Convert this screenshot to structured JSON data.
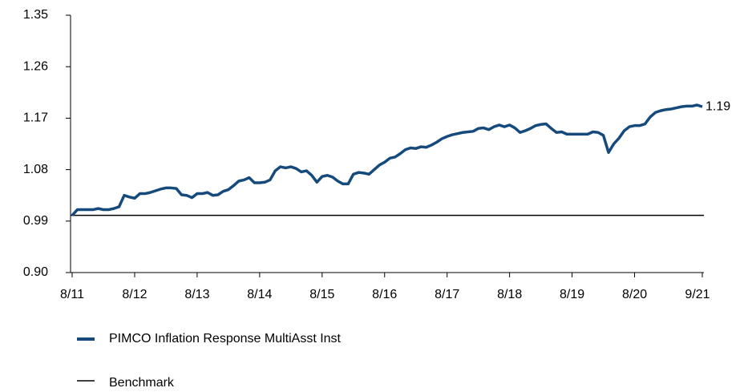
{
  "chart_data": {
    "type": "line",
    "categories": [
      "8/11",
      null,
      null,
      null,
      null,
      null,
      null,
      null,
      null,
      null,
      null,
      null,
      "8/12",
      null,
      null,
      null,
      null,
      null,
      null,
      null,
      null,
      null,
      null,
      null,
      "8/13",
      null,
      null,
      null,
      null,
      null,
      null,
      null,
      null,
      null,
      null,
      null,
      "8/14",
      null,
      null,
      null,
      null,
      null,
      null,
      null,
      null,
      null,
      null,
      null,
      "8/15",
      null,
      null,
      null,
      null,
      null,
      null,
      null,
      null,
      null,
      null,
      null,
      "8/16",
      null,
      null,
      null,
      null,
      null,
      null,
      null,
      null,
      null,
      null,
      null,
      "8/17",
      null,
      null,
      null,
      null,
      null,
      null,
      null,
      null,
      null,
      null,
      null,
      "8/18",
      null,
      null,
      null,
      null,
      null,
      null,
      null,
      null,
      null,
      null,
      null,
      "8/19",
      null,
      null,
      null,
      null,
      null,
      null,
      null,
      null,
      null,
      null,
      null,
      "8/20",
      null,
      null,
      null,
      null,
      null,
      null,
      null,
      null,
      null,
      null,
      null,
      null,
      "9/21"
    ],
    "series": [
      {
        "name": "PIMCO Inflation Response MultiAsst Inst",
        "color": "#174a7c",
        "values": [
          1.0,
          1.01,
          1.01,
          1.01,
          1.01,
          1.012,
          1.01,
          1.01,
          1.012,
          1.015,
          1.035,
          1.032,
          1.03,
          1.038,
          1.038,
          1.04,
          1.043,
          1.046,
          1.048,
          1.048,
          1.047,
          1.036,
          1.035,
          1.031,
          1.038,
          1.038,
          1.04,
          1.035,
          1.036,
          1.042,
          1.045,
          1.052,
          1.06,
          1.062,
          1.066,
          1.057,
          1.057,
          1.058,
          1.062,
          1.078,
          1.085,
          1.083,
          1.085,
          1.082,
          1.076,
          1.078,
          1.07,
          1.058,
          1.068,
          1.07,
          1.067,
          1.06,
          1.055,
          1.055,
          1.072,
          1.075,
          1.074,
          1.072,
          1.08,
          1.088,
          1.093,
          1.1,
          1.102,
          1.108,
          1.115,
          1.118,
          1.117,
          1.12,
          1.119,
          1.123,
          1.128,
          1.134,
          1.138,
          1.141,
          1.143,
          1.145,
          1.146,
          1.147,
          1.152,
          1.153,
          1.15,
          1.155,
          1.158,
          1.155,
          1.158,
          1.153,
          1.145,
          1.148,
          1.152,
          1.157,
          1.159,
          1.16,
          1.152,
          1.145,
          1.146,
          1.142,
          1.142,
          1.142,
          1.142,
          1.142,
          1.146,
          1.145,
          1.14,
          1.11,
          1.125,
          1.135,
          1.148,
          1.155,
          1.157,
          1.157,
          1.16,
          1.172,
          1.18,
          1.183,
          1.185,
          1.186,
          1.188,
          1.19,
          1.191,
          1.191,
          1.193,
          1.19
        ]
      }
    ],
    "benchmark": {
      "name": "Benchmark",
      "value": 1,
      "color": "#000000"
    },
    "ylim": [
      0.9,
      1.35
    ],
    "yticks": [
      {
        "value": 0.9,
        "label": "0.90"
      },
      0.99,
      1.08,
      1.17,
      1.26,
      1.35
    ]
  }
}
